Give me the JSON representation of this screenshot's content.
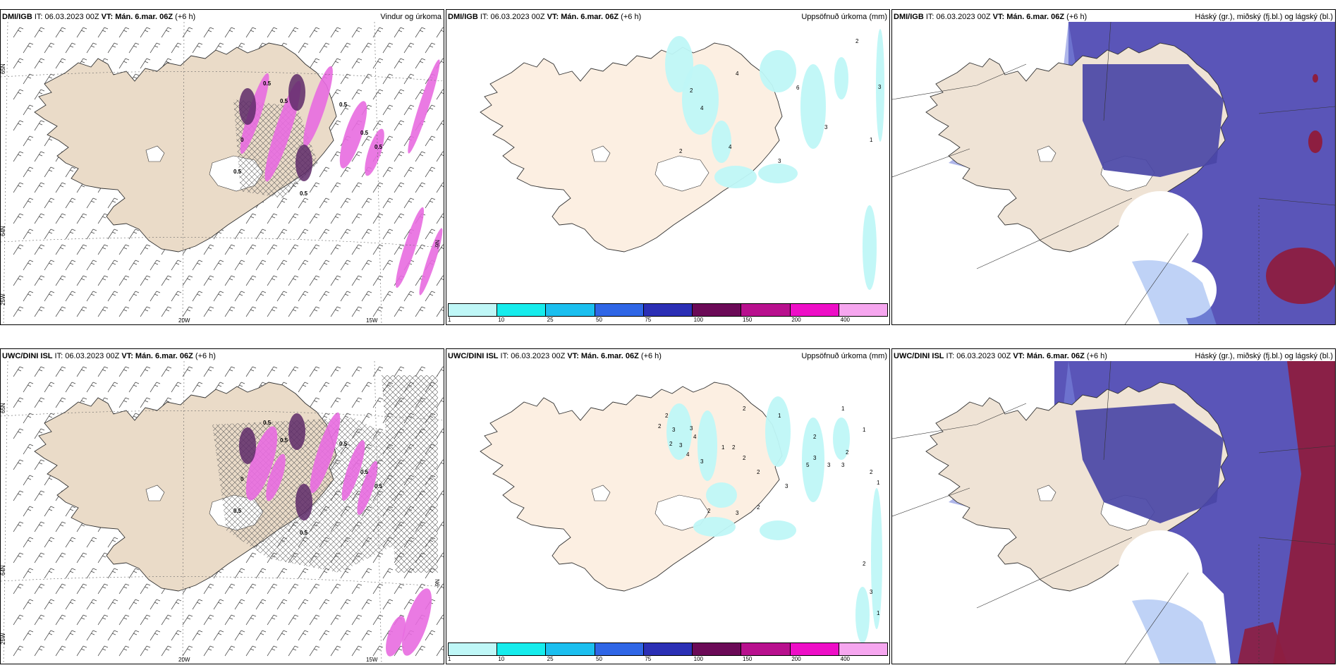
{
  "panels": [
    {
      "id": "p1",
      "src": "DMI/IGB",
      "it": " IT: 06.03.2023 00Z ",
      "vt": "VT: Mán. 6.mar. 06Z",
      "lead": " (+6 h)",
      "right": "Vindur og úrkoma",
      "kind": "wind"
    },
    {
      "id": "p2",
      "src": "DMI/IGB",
      "it": " IT: 06.03.2023 00Z ",
      "vt": "VT: Mán. 6.mar. 06Z",
      "lead": " (+6 h)",
      "right": "Uppsöfnuð úrkoma (mm)",
      "kind": "precip"
    },
    {
      "id": "p3",
      "src": "DMI/IGB",
      "it": " IT: 06.03.2023 00Z ",
      "vt": "VT: Mán. 6.mar. 06Z",
      "lead": " (+6 h)",
      "right": "Háský (gr.), miðský (fj.bl.) og lágský (bl.)",
      "kind": "cloud"
    },
    {
      "id": "p4",
      "src": "UWC/DINI ISL",
      "it": " IT: 06.03.2023 00Z ",
      "vt": "VT: Mán. 6.mar. 06Z",
      "lead": " (+6 h)",
      "right": "",
      "kind": "wind"
    },
    {
      "id": "p5",
      "src": "UWC/DINI ISL",
      "it": " IT: 06.03.2023 00Z ",
      "vt": "VT: Mán. 6.mar. 06Z",
      "lead": " (+6 h)",
      "right": "Uppsöfnuð úrkoma (mm)",
      "kind": "precip"
    },
    {
      "id": "p6",
      "src": "UWC/DINI ISL",
      "it": " IT: 06.03.2023 00Z ",
      "vt": "VT: Mán. 6.mar. 06Z",
      "lead": " (+6 h)",
      "right": "Háský (gr.), miðský (fj.bl.) og lágský (bl.)",
      "kind": "cloud"
    }
  ],
  "colorbar": {
    "labels": [
      "1",
      "10",
      "25",
      "50",
      "75",
      "100",
      "150",
      "200",
      "400"
    ],
    "colors": [
      "#bff7f7",
      "#16ecec",
      "#1bbfef",
      "#2f66e6",
      "#2b2fb5",
      "#6b0a57",
      "#b8108e",
      "#ee0ec7",
      "#f6a6ef"
    ]
  },
  "grid_labels": {
    "lat65": "65N",
    "lat64": "64N",
    "lon25": "25W",
    "lon20": "20W",
    "lon15": "15W",
    "lon_east": "-9N"
  },
  "precip_labels_top": [
    "2",
    "2",
    "4",
    "4",
    "6",
    "4",
    "3",
    "3",
    "2",
    "1",
    "3"
  ],
  "precip_labels_bottom": [
    "2",
    "2",
    "3",
    "2",
    "3",
    "3",
    "4",
    "4",
    "3",
    "1",
    "2",
    "2",
    "2",
    "2",
    "1",
    "3",
    "5",
    "3",
    "3",
    "3",
    "2",
    "2",
    "1",
    "1",
    "2",
    "1",
    "2",
    "2",
    "3",
    "2",
    "3",
    "1"
  ],
  "wind_labels": [
    "0.5",
    "0.5",
    "0.5",
    "0.5",
    "0.5",
    "0",
    "0.5",
    "0.5"
  ],
  "colors": {
    "land": "#f3e8dc",
    "land_dark": "#e9dccb",
    "cyan": "#bff7f7",
    "magenta": "#e86be0",
    "purple": "#5e2a69",
    "blue_cloud": "#5a55b8",
    "blue_cloud_dark": "#4a46a6",
    "red_cloud": "#8d1e40",
    "light_blue": "#7fa6ee"
  }
}
